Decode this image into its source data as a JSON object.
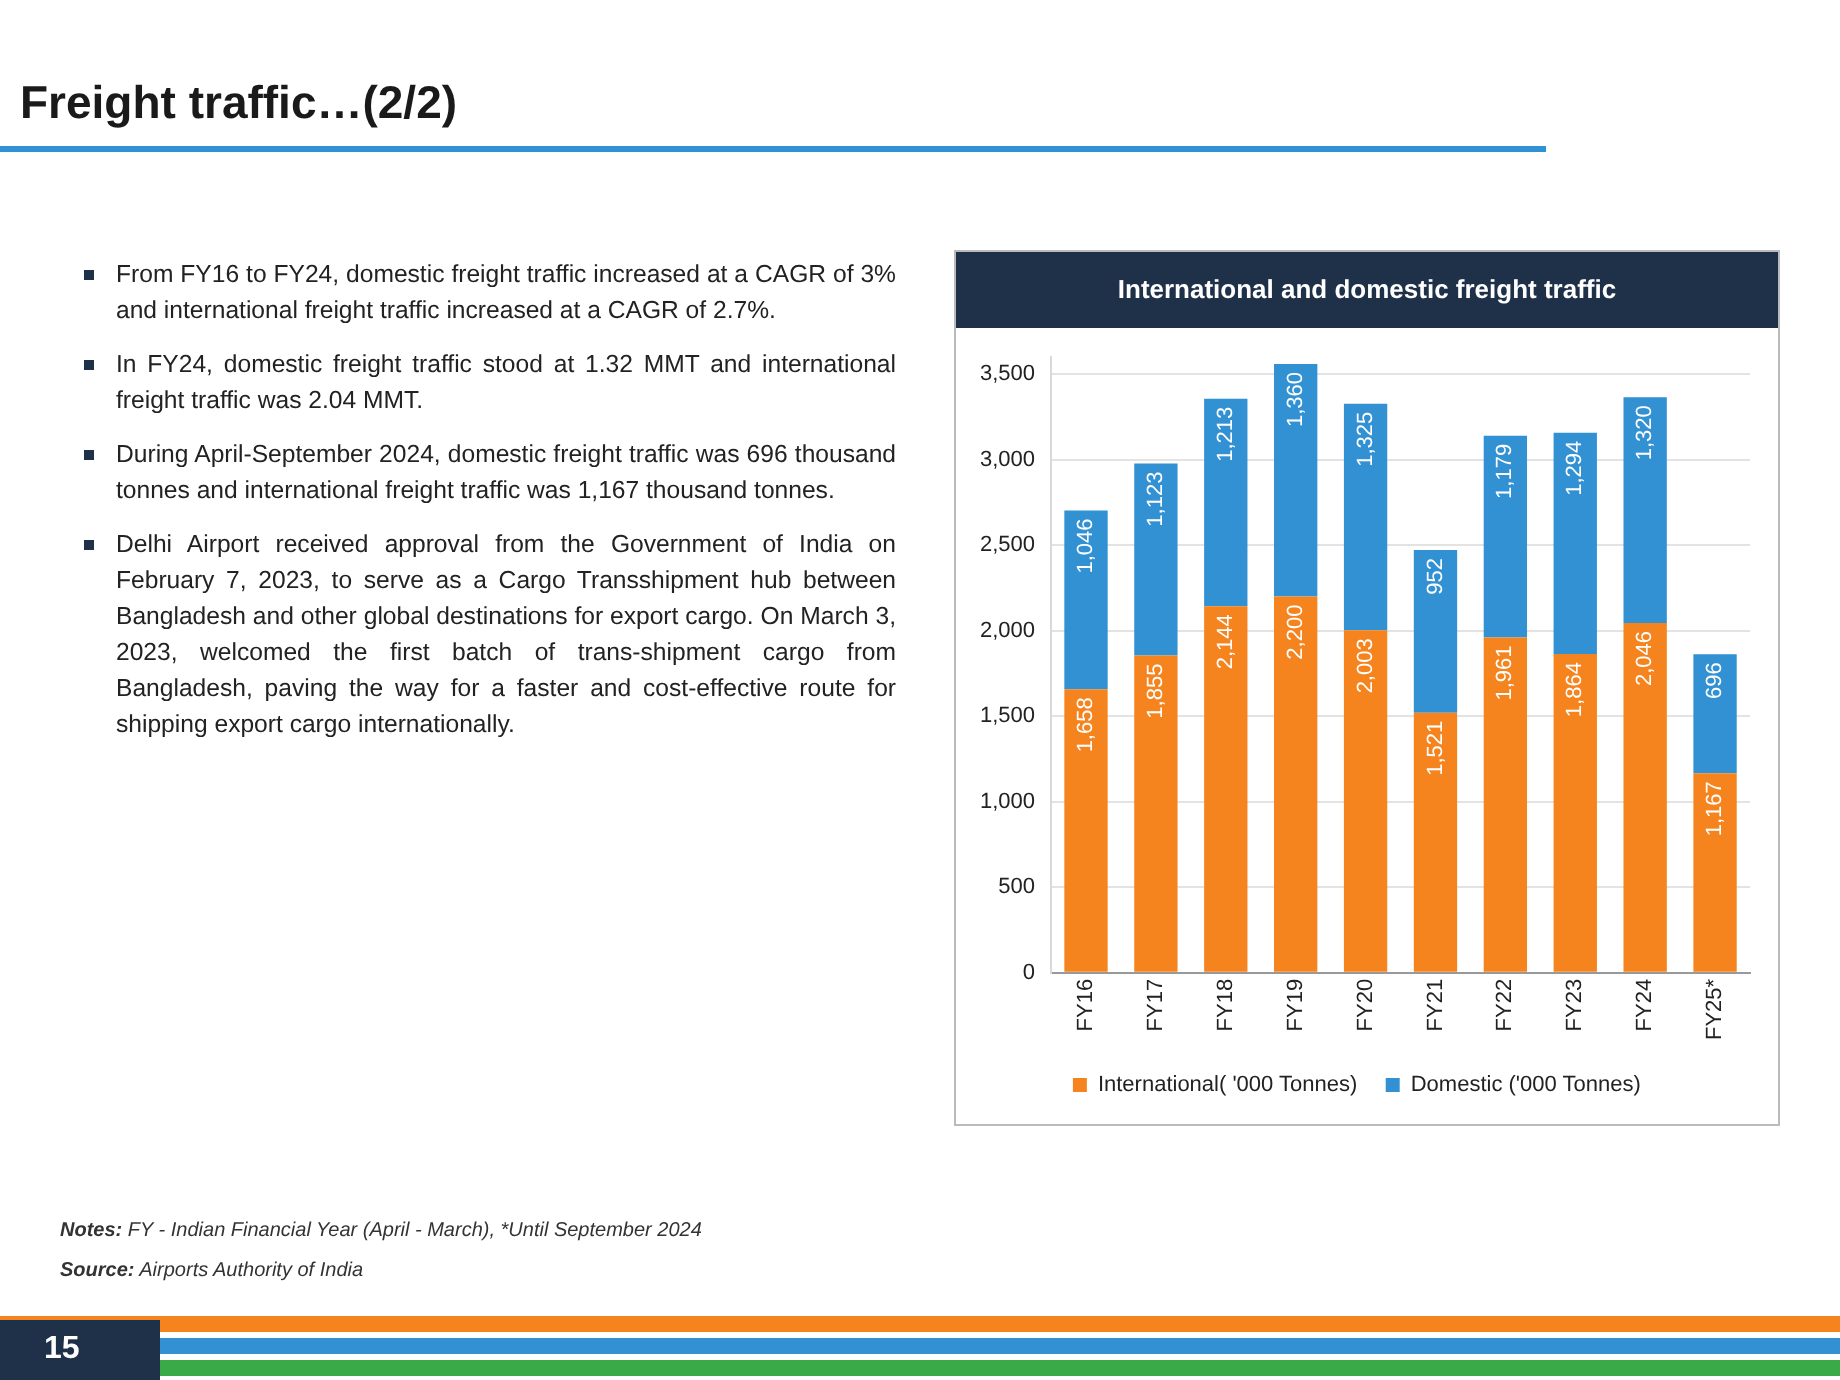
{
  "chart_data": {
    "type": "bar",
    "title": "International and domestic freight traffic",
    "categories": [
      "FY16",
      "FY17",
      "FY18",
      "FY19",
      "FY20",
      "FY21",
      "FY22",
      "FY23",
      "FY24",
      "FY25*"
    ],
    "series": [
      {
        "name": "International( '000 Tonnes)",
        "color": "#f5841f",
        "values": [
          1658,
          1855,
          2144,
          2200,
          2003,
          1521,
          1961,
          1864,
          2046,
          1167
        ],
        "value_labels": [
          "1,658",
          "1,855",
          "2,144",
          "2,200",
          "2,003",
          "1,521",
          "1,961",
          "1,864",
          "2,046",
          "1,167"
        ]
      },
      {
        "name": "Domestic ('000 Tonnes)",
        "color": "#3291d3",
        "values": [
          1046,
          1123,
          1213,
          1360,
          1325,
          952,
          1179,
          1294,
          1320,
          696
        ],
        "value_labels": [
          "1,046",
          "1,123",
          "1,213",
          "1,360",
          "1,325",
          "952",
          "1,179",
          "1,294",
          "1,320",
          "696"
        ]
      }
    ],
    "stacked": true,
    "grid": "y",
    "legend": "bottom",
    "ylim": [
      0,
      3600
    ],
    "yticks": [
      0,
      {
        "value": 500,
        "label": "500"
      },
      {
        "value": 1000,
        "label": "1,000"
      },
      {
        "value": 1500,
        "label": "1,500"
      },
      {
        "value": 2000,
        "label": "2,000"
      },
      {
        "value": 2500,
        "label": "2,500"
      },
      {
        "value": 3000,
        "label": "3,000"
      },
      {
        "value": 3500,
        "label": "3,500"
      }
    ],
    "annotations": [
      "Freight traffic…(2/2)",
      "From FY16 to FY24, domestic freight traffic increased at a CAGR of 3% and international freight traffic increased at a CAGR of 2.7%.",
      "In FY24, domestic freight traffic stood at 1.32 MMT and international freight traffic was 2.04 MMT.",
      "During April-September 2024, domestic freight traffic was 696 thousand tonnes and international freight traffic was 1,167 thousand tonnes.",
      "Delhi Airport received approval from the Government of India on February 7, 2023, to serve as a Cargo Transshipment hub between Bangladesh and other global destinations for export cargo. On March 3, 2023, welcomed the first batch of trans-shipment cargo from Bangladesh, paving the way for a faster and cost-effective route for shipping export cargo internationally.",
      "Notes: FY - Indian Financial Year (April - March), *Until September 2024",
      "Source: Airports Authority of India",
      "15"
    ]
  }
}
